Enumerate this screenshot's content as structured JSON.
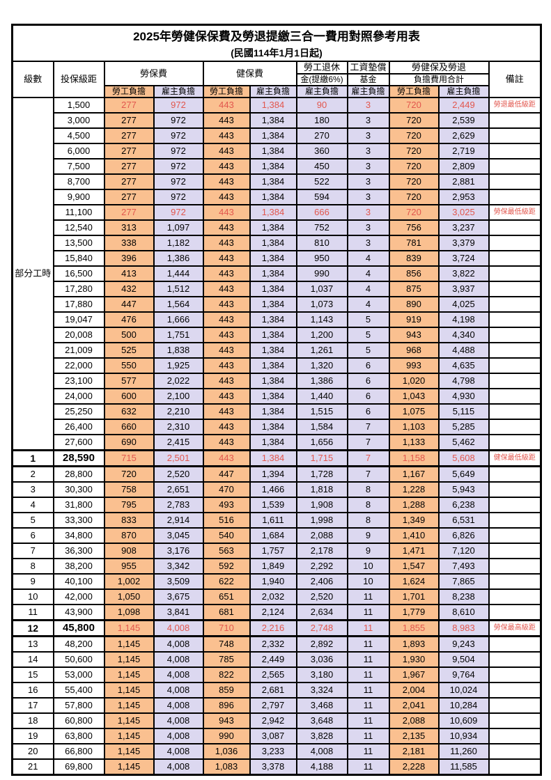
{
  "page": {
    "title": "2025年勞健保保費及勞退提繳三合一費用對照參考用表",
    "subtitle": "(民國114年1月1日起)"
  },
  "colors": {
    "employee_bg": "#fac090",
    "employer_bg": "#dcd8f0",
    "highlight_text": "#e2574e",
    "border": "#000000"
  },
  "header": {
    "level": "級數",
    "bracket": "投保級距",
    "labor_fee": "勞保費",
    "health_fee": "健保費",
    "pension_l1": "勞工退休",
    "pension_l2": "金(提繳6%)",
    "fund_l1": "工資墊償",
    "fund_l2": "基金",
    "total_l1": "勞健保及勞退",
    "total_l2": "負擔費用合計",
    "remark": "備註",
    "employee_share": "勞工負擔",
    "employer_share": "雇主負擔"
  },
  "table": {
    "part_time_label": "部分工時",
    "part_time_rowspan": 23,
    "column_semantics": [
      "級數",
      "投保級距",
      "勞保費-勞工負擔",
      "勞保費-雇主負擔",
      "健保費-勞工負擔",
      "健保費-雇主負擔",
      "勞工退休金(提繳6%)-雇主負擔",
      "工資墊償基金-雇主負擔",
      "合計-勞工負擔",
      "合計-雇主負擔",
      "備註"
    ],
    "rows": [
      {
        "level": "",
        "bracket": "1,500",
        "v": [
          "277",
          "972",
          "443",
          "1,384",
          "90",
          "3",
          "720",
          "2,449"
        ],
        "remark": "勞退最低級距",
        "hl": true
      },
      {
        "level": "",
        "bracket": "3,000",
        "v": [
          "277",
          "972",
          "443",
          "1,384",
          "180",
          "3",
          "720",
          "2,539"
        ],
        "remark": ""
      },
      {
        "level": "",
        "bracket": "4,500",
        "v": [
          "277",
          "972",
          "443",
          "1,384",
          "270",
          "3",
          "720",
          "2,629"
        ],
        "remark": ""
      },
      {
        "level": "",
        "bracket": "6,000",
        "v": [
          "277",
          "972",
          "443",
          "1,384",
          "360",
          "3",
          "720",
          "2,719"
        ],
        "remark": ""
      },
      {
        "level": "",
        "bracket": "7,500",
        "v": [
          "277",
          "972",
          "443",
          "1,384",
          "450",
          "3",
          "720",
          "2,809"
        ],
        "remark": ""
      },
      {
        "level": "",
        "bracket": "8,700",
        "v": [
          "277",
          "972",
          "443",
          "1,384",
          "522",
          "3",
          "720",
          "2,881"
        ],
        "remark": ""
      },
      {
        "level": "",
        "bracket": "9,900",
        "v": [
          "277",
          "972",
          "443",
          "1,384",
          "594",
          "3",
          "720",
          "2,953"
        ],
        "remark": ""
      },
      {
        "level": "",
        "bracket": "11,100",
        "v": [
          "277",
          "972",
          "443",
          "1,384",
          "666",
          "3",
          "720",
          "3,025"
        ],
        "remark": "勞保最低級距",
        "hl": true
      },
      {
        "level": "",
        "bracket": "12,540",
        "v": [
          "313",
          "1,097",
          "443",
          "1,384",
          "752",
          "3",
          "756",
          "3,237"
        ],
        "remark": ""
      },
      {
        "level": "",
        "bracket": "13,500",
        "v": [
          "338",
          "1,182",
          "443",
          "1,384",
          "810",
          "3",
          "781",
          "3,379"
        ],
        "remark": ""
      },
      {
        "level": "",
        "bracket": "15,840",
        "v": [
          "396",
          "1,386",
          "443",
          "1,384",
          "950",
          "4",
          "839",
          "3,724"
        ],
        "remark": ""
      },
      {
        "level": "",
        "bracket": "16,500",
        "v": [
          "413",
          "1,444",
          "443",
          "1,384",
          "990",
          "4",
          "856",
          "3,822"
        ],
        "remark": ""
      },
      {
        "level": "",
        "bracket": "17,280",
        "v": [
          "432",
          "1,512",
          "443",
          "1,384",
          "1,037",
          "4",
          "875",
          "3,937"
        ],
        "remark": ""
      },
      {
        "level": "",
        "bracket": "17,880",
        "v": [
          "447",
          "1,564",
          "443",
          "1,384",
          "1,073",
          "4",
          "890",
          "4,025"
        ],
        "remark": ""
      },
      {
        "level": "",
        "bracket": "19,047",
        "v": [
          "476",
          "1,666",
          "443",
          "1,384",
          "1,143",
          "5",
          "919",
          "4,198"
        ],
        "remark": ""
      },
      {
        "level": "",
        "bracket": "20,008",
        "v": [
          "500",
          "1,751",
          "443",
          "1,384",
          "1,200",
          "5",
          "943",
          "4,340"
        ],
        "remark": ""
      },
      {
        "level": "",
        "bracket": "21,009",
        "v": [
          "525",
          "1,838",
          "443",
          "1,384",
          "1,261",
          "5",
          "968",
          "4,488"
        ],
        "remark": ""
      },
      {
        "level": "",
        "bracket": "22,000",
        "v": [
          "550",
          "1,925",
          "443",
          "1,384",
          "1,320",
          "6",
          "993",
          "4,635"
        ],
        "remark": ""
      },
      {
        "level": "",
        "bracket": "23,100",
        "v": [
          "577",
          "2,022",
          "443",
          "1,384",
          "1,386",
          "6",
          "1,020",
          "4,798"
        ],
        "remark": ""
      },
      {
        "level": "",
        "bracket": "24,000",
        "v": [
          "600",
          "2,100",
          "443",
          "1,384",
          "1,440",
          "6",
          "1,043",
          "4,930"
        ],
        "remark": ""
      },
      {
        "level": "",
        "bracket": "25,250",
        "v": [
          "632",
          "2,210",
          "443",
          "1,384",
          "1,515",
          "6",
          "1,075",
          "5,115"
        ],
        "remark": ""
      },
      {
        "level": "",
        "bracket": "26,400",
        "v": [
          "660",
          "2,310",
          "443",
          "1,384",
          "1,584",
          "7",
          "1,103",
          "5,285"
        ],
        "remark": ""
      },
      {
        "level": "",
        "bracket": "27,600",
        "v": [
          "690",
          "2,415",
          "443",
          "1,384",
          "1,656",
          "7",
          "1,133",
          "5,462"
        ],
        "remark": ""
      },
      {
        "level": "1",
        "bracket": "28,590",
        "v": [
          "715",
          "2,501",
          "443",
          "1,384",
          "1,715",
          "7",
          "1,158",
          "5,608"
        ],
        "remark": "健保最低級距",
        "hl": true,
        "emph": true
      },
      {
        "level": "2",
        "bracket": "28,800",
        "v": [
          "720",
          "2,520",
          "447",
          "1,394",
          "1,728",
          "7",
          "1,167",
          "5,649"
        ],
        "remark": ""
      },
      {
        "level": "3",
        "bracket": "30,300",
        "v": [
          "758",
          "2,651",
          "470",
          "1,466",
          "1,818",
          "8",
          "1,228",
          "5,943"
        ],
        "remark": ""
      },
      {
        "level": "4",
        "bracket": "31,800",
        "v": [
          "795",
          "2,783",
          "493",
          "1,539",
          "1,908",
          "8",
          "1,288",
          "6,238"
        ],
        "remark": ""
      },
      {
        "level": "5",
        "bracket": "33,300",
        "v": [
          "833",
          "2,914",
          "516",
          "1,611",
          "1,998",
          "8",
          "1,349",
          "6,531"
        ],
        "remark": ""
      },
      {
        "level": "6",
        "bracket": "34,800",
        "v": [
          "870",
          "3,045",
          "540",
          "1,684",
          "2,088",
          "9",
          "1,410",
          "6,826"
        ],
        "remark": ""
      },
      {
        "level": "7",
        "bracket": "36,300",
        "v": [
          "908",
          "3,176",
          "563",
          "1,757",
          "2,178",
          "9",
          "1,471",
          "7,120"
        ],
        "remark": ""
      },
      {
        "level": "8",
        "bracket": "38,200",
        "v": [
          "955",
          "3,342",
          "592",
          "1,849",
          "2,292",
          "10",
          "1,547",
          "7,493"
        ],
        "remark": ""
      },
      {
        "level": "9",
        "bracket": "40,100",
        "v": [
          "1,002",
          "3,509",
          "622",
          "1,940",
          "2,406",
          "10",
          "1,624",
          "7,865"
        ],
        "remark": ""
      },
      {
        "level": "10",
        "bracket": "42,000",
        "v": [
          "1,050",
          "3,675",
          "651",
          "2,032",
          "2,520",
          "11",
          "1,701",
          "8,238"
        ],
        "remark": ""
      },
      {
        "level": "11",
        "bracket": "43,900",
        "v": [
          "1,098",
          "3,841",
          "681",
          "2,124",
          "2,634",
          "11",
          "1,779",
          "8,610"
        ],
        "remark": ""
      },
      {
        "level": "12",
        "bracket": "45,800",
        "v": [
          "1,145",
          "4,008",
          "710",
          "2,216",
          "2,748",
          "11",
          "1,855",
          "8,983"
        ],
        "remark": "勞保最高級距",
        "hl": true,
        "emph": true
      },
      {
        "level": "13",
        "bracket": "48,200",
        "v": [
          "1,145",
          "4,008",
          "748",
          "2,332",
          "2,892",
          "11",
          "1,893",
          "9,243"
        ],
        "remark": ""
      },
      {
        "level": "14",
        "bracket": "50,600",
        "v": [
          "1,145",
          "4,008",
          "785",
          "2,449",
          "3,036",
          "11",
          "1,930",
          "9,504"
        ],
        "remark": ""
      },
      {
        "level": "15",
        "bracket": "53,000",
        "v": [
          "1,145",
          "4,008",
          "822",
          "2,565",
          "3,180",
          "11",
          "1,967",
          "9,764"
        ],
        "remark": ""
      },
      {
        "level": "16",
        "bracket": "55,400",
        "v": [
          "1,145",
          "4,008",
          "859",
          "2,681",
          "3,324",
          "11",
          "2,004",
          "10,024"
        ],
        "remark": ""
      },
      {
        "level": "17",
        "bracket": "57,800",
        "v": [
          "1,145",
          "4,008",
          "896",
          "2,797",
          "3,468",
          "11",
          "2,041",
          "10,284"
        ],
        "remark": ""
      },
      {
        "level": "18",
        "bracket": "60,800",
        "v": [
          "1,145",
          "4,008",
          "943",
          "2,942",
          "3,648",
          "11",
          "2,088",
          "10,609"
        ],
        "remark": ""
      },
      {
        "level": "19",
        "bracket": "63,800",
        "v": [
          "1,145",
          "4,008",
          "990",
          "3,087",
          "3,828",
          "11",
          "2,135",
          "10,934"
        ],
        "remark": ""
      },
      {
        "level": "20",
        "bracket": "66,800",
        "v": [
          "1,145",
          "4,008",
          "1,036",
          "3,233",
          "4,008",
          "11",
          "2,181",
          "11,260"
        ],
        "remark": ""
      },
      {
        "level": "21",
        "bracket": "69,800",
        "v": [
          "1,145",
          "4,008",
          "1,083",
          "3,378",
          "4,188",
          "11",
          "2,228",
          "11,585"
        ],
        "remark": ""
      }
    ]
  }
}
